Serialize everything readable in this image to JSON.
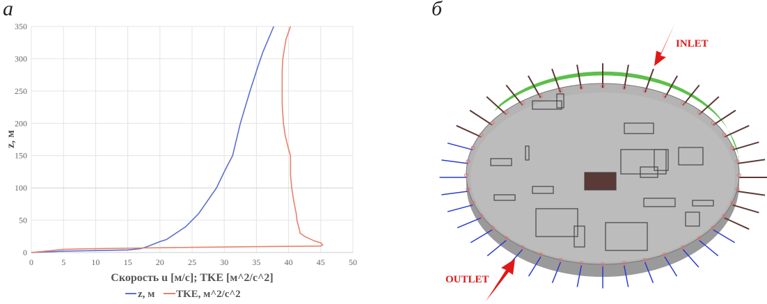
{
  "panel_labels": {
    "left": "а",
    "right": "б"
  },
  "chart_data": {
    "type": "line",
    "title": "",
    "xlabel": "Скорость u [м/с]; TKE [м^2/с^2]",
    "ylabel": "z, м",
    "xlim": [
      0,
      50
    ],
    "ylim": [
      0,
      350
    ],
    "xticks": [
      0,
      5,
      10,
      15,
      20,
      25,
      30,
      35,
      40,
      45,
      50
    ],
    "yticks": [
      0,
      50,
      100,
      150,
      200,
      250,
      300,
      350
    ],
    "grid": true,
    "legend_position": "bottom",
    "series": [
      {
        "name": "z, м",
        "color": "#5b6fd0",
        "x": [
          0,
          5,
          10,
          15,
          17,
          18,
          20,
          21,
          24,
          26,
          28.8,
          30,
          31.3,
          32.5,
          34,
          35.3,
          36,
          37.7
        ],
        "y": [
          0,
          2,
          3,
          4,
          6,
          9,
          17,
          20,
          40,
          60,
          100,
          125,
          150,
          200,
          250,
          290,
          310,
          350
        ]
      },
      {
        "name": "TKE, м^2/с^2",
        "color": "#e8806a",
        "x": [
          0,
          5,
          10,
          17,
          25,
          35,
          45,
          45.3,
          45,
          44,
          42.5,
          41.8,
          41.7,
          41.3,
          41.2,
          40.8,
          40.5,
          40.3,
          40.3,
          40,
          39.5,
          39.2,
          39,
          39,
          39.1,
          39.6,
          40.3
        ],
        "y": [
          0,
          5,
          6,
          7,
          8,
          9,
          10,
          12,
          15,
          18,
          25,
          30,
          35,
          50,
          60,
          80,
          100,
          120,
          150,
          160,
          180,
          200,
          230,
          280,
          300,
          330,
          350
        ]
      }
    ]
  },
  "domain_view": {
    "inlet_label": "INLET",
    "outlet_label": "OUTLET",
    "colors": {
      "inlet": "#5cc04a",
      "floor": "#b4b4b4",
      "arrow": "#e01818"
    }
  }
}
